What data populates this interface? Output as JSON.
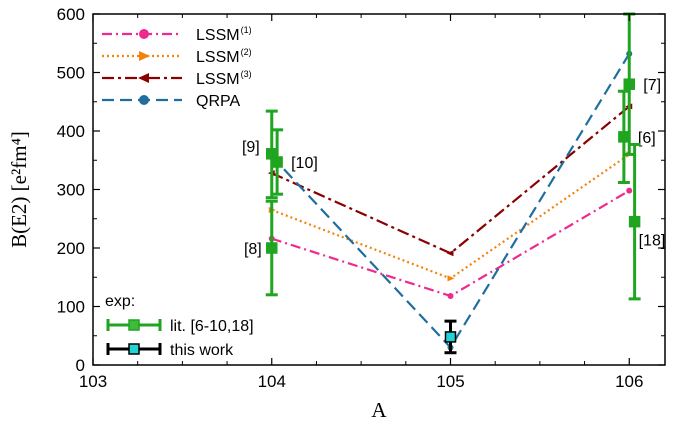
{
  "chart_data": {
    "type": "line",
    "xlabel": "A",
    "ylabel": "B(E2) [e²fm⁴]",
    "xlim": [
      103,
      106.2
    ],
    "ylim": [
      0,
      600
    ],
    "x_ticks": [
      "103",
      "104",
      "105",
      "106"
    ],
    "y_ticks": [
      "0",
      "100",
      "200",
      "300",
      "400",
      "500",
      "600"
    ],
    "grid": false,
    "legend_position": "top-left",
    "series": [
      {
        "name": "LSSM",
        "superscript": "(1)",
        "color": "#ee2a8c",
        "dash": "10,4,2,4",
        "marker": "circle",
        "x": [
          104,
          105,
          106
        ],
        "y": [
          216,
          118,
          298
        ]
      },
      {
        "name": "LSSM",
        "superscript": "(2)",
        "color": "#f5820a",
        "dash": "2,3",
        "marker": "triangle",
        "x": [
          104,
          105,
          106
        ],
        "y": [
          265,
          148,
          360
        ]
      },
      {
        "name": "LSSM",
        "superscript": "(3)",
        "color": "#8b0000",
        "dash": "12,4,3,4",
        "marker": "triangle-left",
        "x": [
          104,
          105,
          106
        ],
        "y": [
          328,
          191,
          442
        ]
      },
      {
        "name": "QRPA",
        "superscript": "",
        "color": "#1f6e9e",
        "dash": "12,6",
        "marker": "circle",
        "x": [
          104,
          105,
          106
        ],
        "y": [
          357,
          30,
          532
        ]
      }
    ],
    "experimental": [
      {
        "name": "lit. [6-10,18]",
        "color": "#1fa51f",
        "marker_fill": "#3dbb3d",
        "points": [
          {
            "x": 104,
            "y": 200,
            "err_low": 80,
            "err_high": 80,
            "label": "[8]",
            "label_side": "left"
          },
          {
            "x": 104,
            "y": 361,
            "err_low": 75,
            "err_high": 73,
            "label": "[9]",
            "label_side": "left"
          },
          {
            "x": 104.03,
            "y": 347,
            "err_low": 55,
            "err_high": 55,
            "label": "[10]",
            "label_side": "right"
          },
          {
            "x": 105.97,
            "y": 390,
            "err_low": 78,
            "err_high": 78,
            "label": "[6]",
            "label_side": "right"
          },
          {
            "x": 106.0,
            "y": 480,
            "err_low": 120,
            "err_high": 120,
            "label": "[7]",
            "label_side": "right"
          },
          {
            "x": 106.03,
            "y": 245,
            "err_low": 132,
            "err_high": 132,
            "label": "[18]",
            "label_side": "right"
          }
        ]
      },
      {
        "name": "this work",
        "color": "#000000",
        "marker_fill": "#22d3d3",
        "points": [
          {
            "x": 105,
            "y": 48,
            "err_low": 27,
            "err_high": 27,
            "label": "",
            "label_side": "none"
          }
        ]
      }
    ],
    "legend_exp_title": "exp:"
  }
}
